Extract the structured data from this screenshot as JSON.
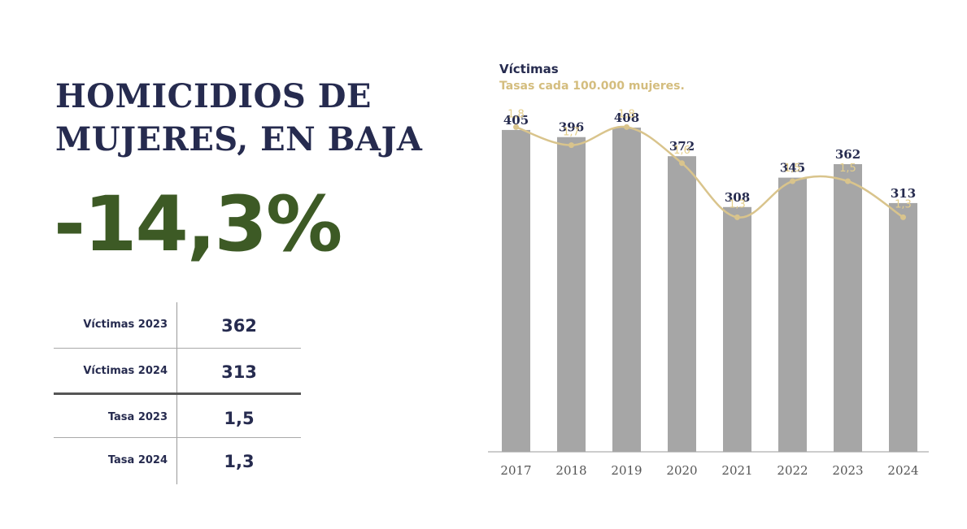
{
  "headline": {
    "line1": "HOMICIDIOS DE",
    "line2": "MUJERES, EN BAJA"
  },
  "big_stat": "-14,3%",
  "summary_table": [
    {
      "label": "Víctimas 2023",
      "value": "362"
    },
    {
      "label": "Víctimas 2024",
      "value": "313"
    },
    {
      "label": "Tasa 2023",
      "value": "1,5"
    },
    {
      "label": "Tasa 2024",
      "value": "1,3"
    }
  ],
  "colors": {
    "navy": "#262b4f",
    "green": "#3d5a25",
    "bar_gray": "#a6a6a6",
    "rate_gold": "#d4bd7e"
  },
  "chart_data": {
    "type": "bar",
    "categories": [
      "2017",
      "2018",
      "2019",
      "2020",
      "2021",
      "2022",
      "2023",
      "2024"
    ],
    "series": [
      {
        "name": "Víctimas",
        "chart_type": "bar",
        "values": [
          405,
          396,
          408,
          372,
          308,
          345,
          362,
          313
        ],
        "labels": [
          "405",
          "396",
          "408",
          "372",
          "308",
          "345",
          "362",
          "313"
        ]
      },
      {
        "name": "Tasas cada 100.000 mujeres.",
        "chart_type": "line",
        "values": [
          1.8,
          1.7,
          1.8,
          1.6,
          1.3,
          1.5,
          1.5,
          1.3
        ],
        "labels": [
          "1,8",
          "1,7",
          "1,8",
          "1,6",
          "1,3",
          "1,5",
          "1,5",
          "1,3"
        ]
      }
    ],
    "legend_position": "top-left",
    "grid": false,
    "ylim_bars": [
      0,
      408
    ],
    "ylim_rate": [
      0,
      2.5
    ]
  }
}
